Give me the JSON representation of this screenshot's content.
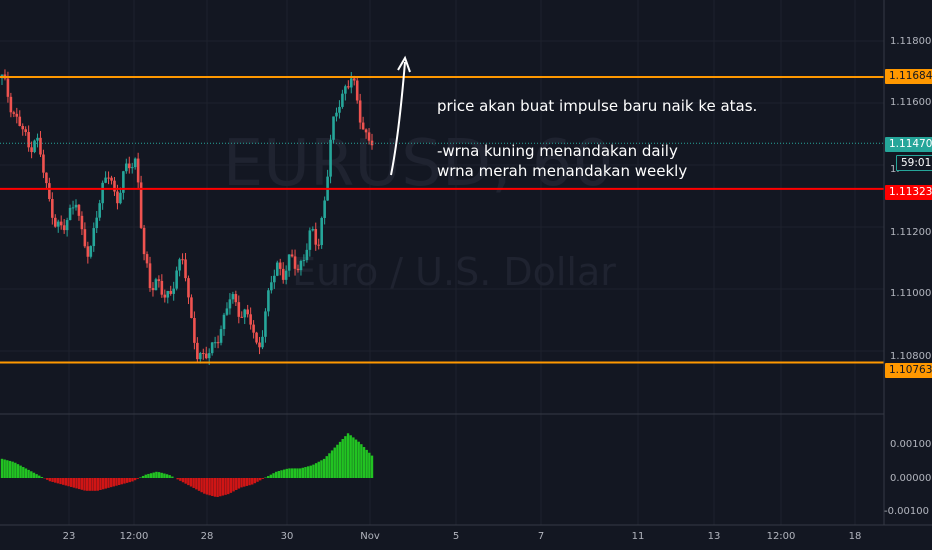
{
  "symbol": {
    "watermark": "EURUSD, 60",
    "subtitle": "Euro / U.S. Dollar"
  },
  "annotations": [
    "price akan buat impulse baru naik ke atas.",
    "-wrna kuning menandakan daily",
    "wrna merah menandakan weekly"
  ],
  "price_axis": {
    "ticks": [
      "1.11800",
      "1.11600",
      "1.11400",
      "1.11200",
      "1.11000",
      "1.10800"
    ],
    "ticks_values": [
      1.118,
      1.116,
      1.114,
      1.112,
      1.11,
      1.108
    ],
    "ticks_partial": "1."
  },
  "price_tags": {
    "orange_top": "1.11684",
    "current": "1.11470",
    "countdown": "59:01",
    "red": "1.11323",
    "orange_bottom": "1.10763"
  },
  "oscillator_axis": {
    "ticks": [
      "0.00100",
      "0.00000",
      "-0.00100"
    ]
  },
  "time_axis": {
    "labels": [
      "23",
      "12:00",
      "28",
      "30",
      "Nov",
      "5",
      "7",
      "11",
      "13",
      "12:00",
      "18"
    ]
  },
  "colors": {
    "background": "#131722",
    "up_candle": "#26a69a",
    "down_candle": "#ef5350",
    "daily_level": "#ff9800",
    "weekly_level": "#ff0000",
    "current_price": "#26a69a",
    "osc_positive": "#22c322",
    "osc_negative": "#d01515"
  },
  "chart_data": {
    "type": "candlestick",
    "levels": [
      {
        "label": "1.11684",
        "value": 1.11684,
        "kind": "daily"
      },
      {
        "label": "1.11323",
        "value": 1.11323,
        "kind": "weekly"
      },
      {
        "label": "1.10763",
        "value": 1.10763,
        "kind": "daily"
      }
    ],
    "close_path": [
      1.1168,
      1.1162,
      1.1155,
      1.1152,
      1.1145,
      1.115,
      1.114,
      1.1128,
      1.1122,
      1.1118,
      1.1124,
      1.113,
      1.1115,
      1.111,
      1.1125,
      1.1132,
      1.1138,
      1.1128,
      1.1136,
      1.114,
      1.1142,
      1.1112,
      1.11,
      1.1104,
      1.1098,
      1.1096,
      1.1108,
      1.111,
      1.109,
      1.108,
      1.1078,
      1.1079,
      1.1085,
      1.109,
      1.1098,
      1.1094,
      1.1092,
      1.1089,
      1.108,
      1.109,
      1.1102,
      1.1108,
      1.1105,
      1.111,
      1.1106,
      1.1112,
      1.1118,
      1.1114,
      1.113,
      1.115,
      1.116,
      1.1165,
      1.1168,
      1.1158,
      1.115,
      1.1147
    ],
    "oscillator": [
      0.0006,
      0.0005,
      0.0003,
      0.0001,
      -0.0001,
      -0.0002,
      -0.0003,
      -0.0004,
      -0.0004,
      -0.0003,
      -0.0002,
      -0.0001,
      0.0001,
      0.0002,
      0.0001,
      -0.0001,
      -0.0003,
      -0.0005,
      -0.0006,
      -0.0005,
      -0.0003,
      -0.0002,
      0.0,
      0.0002,
      0.0003,
      0.0003,
      0.0004,
      0.0006,
      0.001,
      0.0014,
      0.0011,
      0.0007
    ]
  }
}
